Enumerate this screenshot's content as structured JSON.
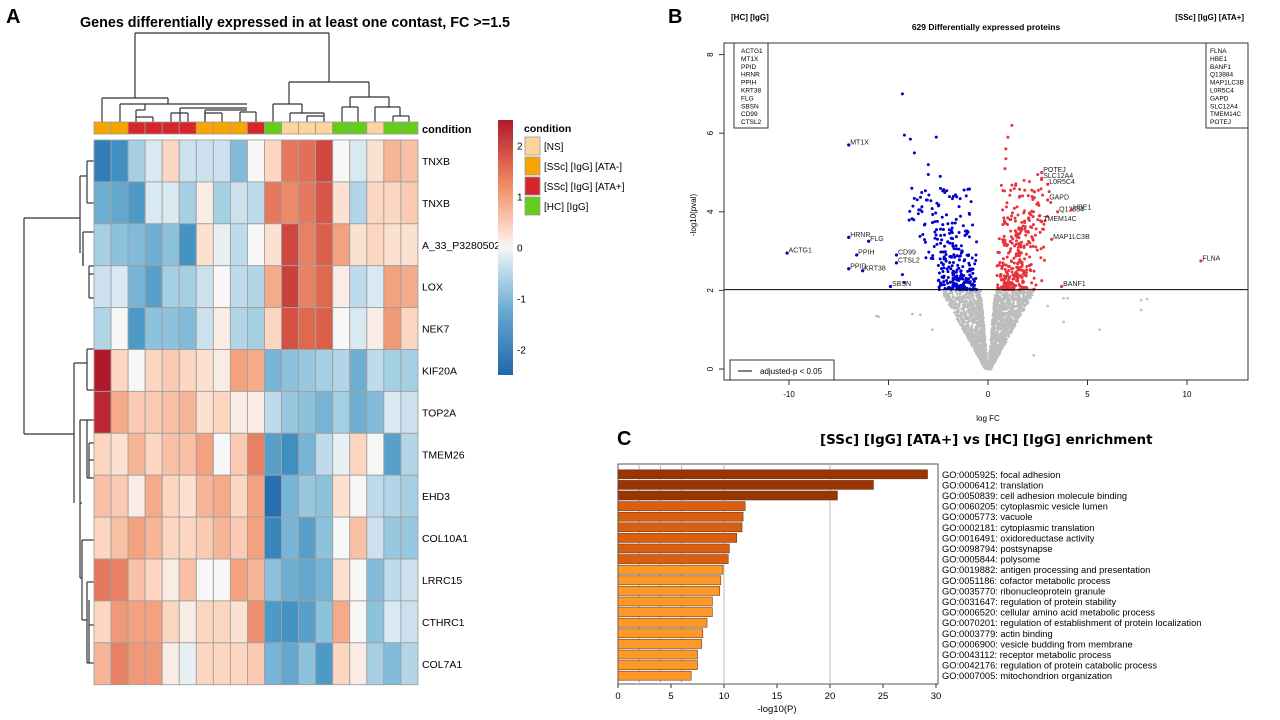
{
  "panels": {
    "a_letter": "A",
    "b_letter": "B",
    "c_letter": "C"
  },
  "chart_data": [
    {
      "type": "heatmap",
      "title": "Genes differentially expressed in at least one contast, FC >=1.5",
      "rows": [
        "TNXB",
        "TNXB",
        "A_33_P3280502",
        "LOX",
        "NEK7",
        "KIF20A",
        "TOP2A",
        "TMEM26",
        "EHD3",
        "COL10A1",
        "LRRC15",
        "CTHRC1",
        "COL7A1"
      ],
      "annotation_label": "condition",
      "column_conditions": [
        "[SSc] [IgG] [ATA-]",
        "[SSc] [IgG] [ATA-]",
        "[SSc] [IgG] [ATA+]",
        "[SSc] [IgG] [ATA+]",
        "[SSc] [IgG] [ATA+]",
        "[SSc] [IgG] [ATA+]",
        "[SSc] [IgG] [ATA-]",
        "[SSc] [IgG] [ATA-]",
        "[SSc] [IgG] [ATA-]",
        "[SSc] [IgG] [ATA+]",
        "[HC] [IgG]",
        "[NS]",
        "[NS]",
        "[NS]",
        "[HC] [IgG]",
        "[HC] [IgG]",
        "[NS]",
        "[HC] [IgG]",
        "[HC] [IgG]"
      ],
      "values": [
        [
          -2.0,
          -1.6,
          -0.6,
          -0.2,
          0.3,
          -0.3,
          -0.3,
          -0.3,
          -0.9,
          0.0,
          0.3,
          1.3,
          1.4,
          1.9,
          0.0,
          -0.2,
          0.2,
          0.6,
          0.5
        ],
        [
          -1.1,
          -1.2,
          -1.4,
          -0.2,
          -0.2,
          -0.6,
          0.1,
          -0.6,
          -0.3,
          -0.4,
          1.3,
          1.1,
          1.3,
          1.7,
          0.2,
          -0.5,
          0.3,
          0.3,
          0.4
        ],
        [
          -0.6,
          -0.8,
          -0.9,
          -1.1,
          -0.8,
          -1.5,
          0.2,
          -0.1,
          -0.4,
          0.0,
          0.2,
          1.9,
          1.2,
          1.6,
          0.8,
          0.2,
          0.3,
          0.2,
          0.2
        ],
        [
          -0.3,
          -0.2,
          -1.0,
          -1.3,
          -0.6,
          -0.6,
          -0.3,
          0.0,
          -0.4,
          -0.5,
          0.7,
          2.0,
          1.2,
          1.5,
          0.1,
          -0.4,
          -0.2,
          0.8,
          0.7
        ],
        [
          -0.5,
          0.0,
          -1.4,
          -0.8,
          -0.8,
          -0.9,
          -0.3,
          0.1,
          -0.5,
          -0.6,
          0.3,
          1.8,
          1.5,
          1.6,
          0.0,
          -0.2,
          0.1,
          0.9,
          0.3
        ],
        [
          2.5,
          0.3,
          0.0,
          0.3,
          0.4,
          0.3,
          0.2,
          0.1,
          0.8,
          0.7,
          -1.0,
          -0.8,
          -0.7,
          -0.6,
          -0.5,
          -1.1,
          -0.4,
          -0.6,
          -0.6
        ],
        [
          2.3,
          0.7,
          0.4,
          0.4,
          0.5,
          0.6,
          0.2,
          0.3,
          0.1,
          0.1,
          -0.4,
          -0.7,
          -0.8,
          -1.0,
          -0.6,
          -1.1,
          -0.9,
          -0.2,
          -0.3
        ],
        [
          0.3,
          0.2,
          0.6,
          0.3,
          0.5,
          0.5,
          0.8,
          0.0,
          0.4,
          1.2,
          -1.3,
          -1.6,
          -1.0,
          -0.4,
          -0.1,
          0.3,
          0.0,
          -1.3,
          -0.5
        ],
        [
          0.5,
          0.4,
          0.1,
          0.7,
          0.3,
          0.2,
          0.6,
          0.7,
          0.3,
          0.8,
          -2.3,
          -1.0,
          -0.7,
          -0.8,
          0.2,
          0.0,
          -0.4,
          -0.5,
          -0.6
        ],
        [
          0.3,
          0.5,
          0.8,
          0.6,
          0.3,
          0.3,
          0.4,
          0.6,
          0.4,
          0.8,
          -1.8,
          -1.0,
          -1.3,
          -0.8,
          0.0,
          0.5,
          -0.3,
          -0.7,
          -0.7
        ],
        [
          1.3,
          1.2,
          0.5,
          0.3,
          0.1,
          0.5,
          0.0,
          0.0,
          0.8,
          0.6,
          -0.8,
          -1.1,
          -1.2,
          -1.0,
          0.2,
          0.0,
          -0.9,
          -0.4,
          -0.3
        ],
        [
          0.3,
          0.9,
          0.8,
          0.8,
          0.3,
          0.1,
          0.3,
          0.3,
          0.2,
          1.0,
          -1.4,
          -1.5,
          -1.3,
          -0.8,
          0.7,
          0.0,
          -0.8,
          -0.2,
          -0.3
        ],
        [
          0.6,
          1.2,
          0.9,
          0.9,
          0.1,
          -0.1,
          0.3,
          0.3,
          0.3,
          0.4,
          -1.0,
          -1.2,
          -0.8,
          -1.4,
          0.3,
          0.1,
          -0.6,
          -0.9,
          -0.5
        ]
      ],
      "legend": {
        "title": "condition",
        "entries": [
          {
            "label": "[NS]",
            "color": "#fdd49e"
          },
          {
            "label": "[SSc] [IgG] [ATA-]",
            "color": "#f7a600"
          },
          {
            "label": "[SSc] [IgG] [ATA+]",
            "color": "#d7262b"
          },
          {
            "label": "[HC] [IgG]",
            "color": "#66cc1a"
          }
        ]
      },
      "colorbar": {
        "ticks": [
          "2",
          "1",
          "0",
          "-1",
          "-2"
        ],
        "range": [
          -2.5,
          2.5
        ],
        "low_color": "#2166ac",
        "mid_color": "#f7f7f7",
        "high_color": "#b2182b"
      }
    },
    {
      "type": "scatter",
      "title": "629 Differentially expressed proteins",
      "left_group": "[HC] [IgG]",
      "right_group": "[SSc] [IgG] [ATA+]",
      "xlabel": "log FC",
      "ylabel": "-log10(pval)",
      "xlim": [
        -13,
        13
      ],
      "ylim": [
        -0.3,
        8.3
      ],
      "xticks": [
        -10,
        -5,
        0,
        5,
        10
      ],
      "yticks": [
        0,
        2,
        4,
        6,
        8
      ],
      "threshold_y": 2.02,
      "threshold_legend": "adjusted-p < 0.05",
      "down_color": "#0000cc",
      "up_color": "#e8333a",
      "ns_color": "#bdbdbd",
      "left_list": [
        "ACTG1",
        "MT1X",
        "PPID",
        "HRNR",
        "PPIH",
        "KRT38",
        "FLG",
        "SBSN",
        "CD99",
        "CTSL2"
      ],
      "right_list": [
        "FLNA",
        "HBE1",
        "BANF1",
        "Q13884",
        "MAP1LC3B",
        "L0R5C4",
        "GAPD",
        "SLC12A4",
        "TMEM14C",
        "POTEJ"
      ],
      "labeled_points": [
        {
          "label": "ACTG1",
          "x": -10.1,
          "y": 2.95,
          "group": "down"
        },
        {
          "label": "MT1X",
          "x": -7.0,
          "y": 5.7,
          "group": "down"
        },
        {
          "label": "HRNR",
          "x": -7.0,
          "y": 3.35,
          "group": "down"
        },
        {
          "label": "FLG",
          "x": -6.0,
          "y": 3.25,
          "group": "down"
        },
        {
          "label": "PPIH",
          "x": -6.6,
          "y": 2.9,
          "group": "down"
        },
        {
          "label": "PPID",
          "x": -7.0,
          "y": 2.55,
          "group": "down"
        },
        {
          "label": "KRT38",
          "x": -6.3,
          "y": 2.5,
          "group": "down"
        },
        {
          "label": "CD99",
          "x": -4.6,
          "y": 2.9,
          "group": "down"
        },
        {
          "label": "CTSL2",
          "x": -4.6,
          "y": 2.7,
          "group": "down"
        },
        {
          "label": "SBSN",
          "x": -4.9,
          "y": 2.1,
          "group": "down"
        },
        {
          "label": "POTEJ",
          "x": 2.7,
          "y": 5.0,
          "group": "up"
        },
        {
          "label": "SLC12A4",
          "x": 2.7,
          "y": 4.85,
          "group": "up"
        },
        {
          "label": "L0R5C4",
          "x": 3.0,
          "y": 4.7,
          "group": "up"
        },
        {
          "label": "GAPD",
          "x": 3.0,
          "y": 4.3,
          "group": "up"
        },
        {
          "label": "Q13884",
          "x": 3.5,
          "y": 4.0,
          "group": "up"
        },
        {
          "label": "HBE1",
          "x": 4.2,
          "y": 4.05,
          "group": "up"
        },
        {
          "label": "TMEM14C",
          "x": 2.7,
          "y": 3.75,
          "group": "up"
        },
        {
          "label": "MAP1LC3B",
          "x": 3.2,
          "y": 3.3,
          "group": "up"
        },
        {
          "label": "FLNA",
          "x": 10.7,
          "y": 2.75,
          "group": "up"
        },
        {
          "label": "BANF1",
          "x": 3.7,
          "y": 2.1,
          "group": "up"
        }
      ]
    },
    {
      "type": "bar",
      "orientation": "horizontal",
      "title": "[SSc] [IgG] [ATA+] vs [HC] [IgG] enrichment",
      "xlabel": "-log10(P)",
      "ylabel": "",
      "xlim": [
        0,
        30.5
      ],
      "xticks": [
        0,
        5,
        10,
        15,
        20,
        25,
        30
      ],
      "grid": "vertical",
      "categories": [
        "GO:0005925: focal adhesion",
        "GO:0006412: translation",
        "GO:0050839: cell adhesion molecule binding",
        "GO:0060205: cytoplasmic vesicle lumen",
        "GO:0005773: vacuole",
        "GO:0002181: cytoplasmic translation",
        "GO:0016491: oxidoreductase activity",
        "GO:0098794: postsynapse",
        "GO:0005844: polysome",
        "GO:0019882: antigen processing and presentation",
        "GO:0051186: cofactor metabolic process",
        "GO:0035770: ribonucleoprotein granule",
        "GO:0031647: regulation of protein stability",
        "GO:0006520: cellular amino acid metabolic process",
        "GO:0070201: regulation of establishment of protein localization",
        "GO:0003779: actin binding",
        "GO:0006900: vesicle budding from membrane",
        "GO:0043112: receptor metabolic process",
        "GO:0042176: regulation of protein catabolic process",
        "GO:0007005: mitochondrion organization"
      ],
      "values": [
        29.2,
        24.1,
        20.7,
        12.0,
        11.8,
        11.7,
        11.2,
        10.5,
        10.4,
        9.9,
        9.7,
        9.6,
        8.9,
        8.9,
        8.4,
        8.0,
        7.9,
        7.5,
        7.5,
        6.9
      ],
      "colors": [
        "#993404",
        "#993404",
        "#993404",
        "#d95f0e",
        "#d95f0e",
        "#d95f0e",
        "#d95f0e",
        "#d95f0e",
        "#d95f0e",
        "#fe9929",
        "#fe9929",
        "#fe9929",
        "#fe9929",
        "#fe9929",
        "#fe9929",
        "#fe9929",
        "#fe9929",
        "#fe9929",
        "#fe9929",
        "#fe9929"
      ]
    }
  ]
}
